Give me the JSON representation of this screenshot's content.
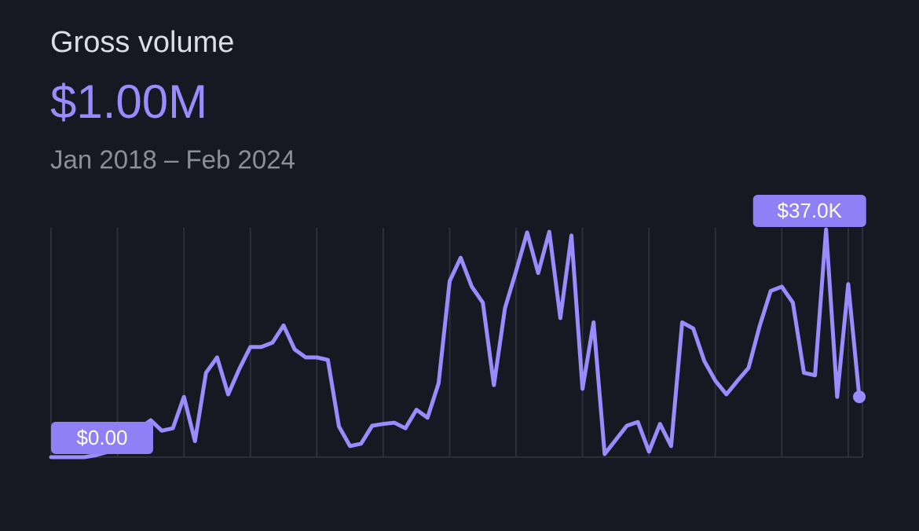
{
  "chart_data": {
    "type": "line",
    "title": "Gross volume",
    "total": "$1.00M",
    "period": "Jan 2018 – Feb 2024",
    "color": "#9a8cff",
    "values": [
      0,
      0,
      0,
      0,
      300,
      800,
      2800,
      4100,
      4700,
      6000,
      4300,
      4700,
      9800,
      2600,
      13700,
      16200,
      10200,
      14300,
      17900,
      17900,
      18600,
      21400,
      17500,
      16200,
      16200,
      15800,
      5000,
      1800,
      2200,
      5100,
      5400,
      5600,
      4700,
      7700,
      6400,
      12000,
      28600,
      32400,
      27700,
      25100,
      11700,
      24200,
      30200,
      36500,
      29900,
      36600,
      22600,
      36000,
      11100,
      21900,
      500,
      2800,
      5100,
      5700,
      900,
      5400,
      1800,
      21900,
      20900,
      15600,
      12400,
      10200,
      12400,
      14500,
      21300,
      27000,
      27700,
      25100,
      13700,
      13300,
      37000,
      9800,
      28100,
      9800
    ],
    "min_label": {
      "value": 0,
      "label": "$0.00"
    },
    "max_label": {
      "value": 37000,
      "label": "$37.0K"
    }
  }
}
